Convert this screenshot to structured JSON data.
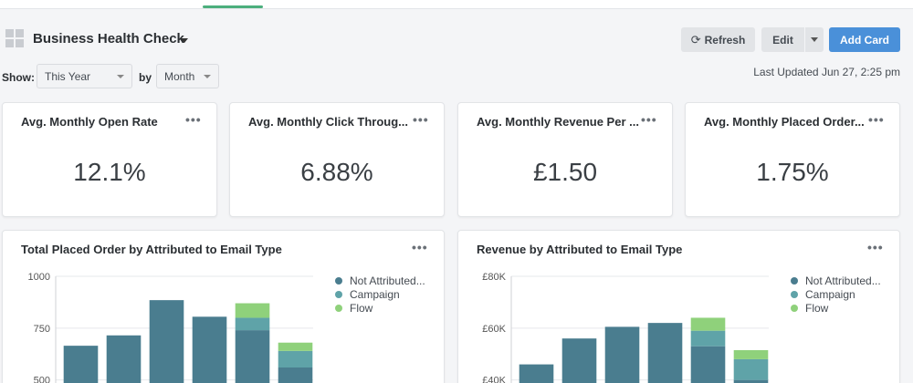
{
  "header": {
    "title": "Business Health Check",
    "refresh_label": "Refresh",
    "edit_label": "Edit",
    "add_card_label": "Add Card"
  },
  "controls": {
    "show_label": "Show:",
    "range_value": "This Year",
    "by_label": "by",
    "interval_value": "Month",
    "last_updated": "Last Updated Jun 27, 2:25 pm"
  },
  "metrics": [
    {
      "title": "Avg. Monthly Open Rate",
      "value": "12.1%"
    },
    {
      "title": "Avg. Monthly Click Throug...",
      "value": "6.88%"
    },
    {
      "title": "Avg. Monthly Revenue Per ...",
      "value": "£1.50"
    },
    {
      "title": "Avg. Monthly Placed Order...",
      "value": "1.75%"
    }
  ],
  "colors": {
    "not_attributed": "#4a7d8f",
    "campaign": "#5fa3a8",
    "flow": "#8fd17b",
    "accent": "#4a90d9"
  },
  "chart_data": [
    {
      "type": "bar",
      "title": "Total Placed Order by Attributed to Email Type",
      "y_ticks": [
        "1000",
        "750",
        "500"
      ],
      "ylim": [
        450,
        1000
      ],
      "legend": [
        "Not Attributed...",
        "Campaign",
        "Flow"
      ],
      "legend_placement": "right",
      "series": [
        {
          "name": "Not Attributed...",
          "values": [
            665,
            715,
            885,
            805,
            740,
            560
          ]
        },
        {
          "name": "Campaign",
          "values": [
            0,
            0,
            0,
            0,
            60,
            80
          ]
        },
        {
          "name": "Flow",
          "values": [
            0,
            0,
            0,
            0,
            70,
            40
          ]
        }
      ]
    },
    {
      "type": "bar",
      "title": "Revenue by Attributed to Email Type",
      "y_ticks": [
        "£80K",
        "£60K",
        "£40K"
      ],
      "ylim": [
        36000,
        80000
      ],
      "legend": [
        "Not Attributed...",
        "Campaign",
        "Flow"
      ],
      "legend_placement": "right",
      "series": [
        {
          "name": "Not Attributed...",
          "values": [
            46000,
            56000,
            60500,
            62000,
            53000,
            40000
          ]
        },
        {
          "name": "Campaign",
          "values": [
            0,
            0,
            0,
            0,
            6000,
            8000
          ]
        },
        {
          "name": "Flow",
          "values": [
            0,
            0,
            0,
            0,
            5000,
            3500
          ]
        }
      ]
    }
  ]
}
